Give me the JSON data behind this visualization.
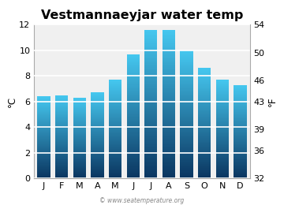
{
  "months": [
    "J",
    "F",
    "M",
    "A",
    "M",
    "J",
    "J",
    "A",
    "S",
    "O",
    "N",
    "D"
  ],
  "values_c": [
    6.4,
    6.5,
    6.3,
    6.7,
    7.7,
    9.7,
    11.6,
    11.6,
    10.0,
    8.6,
    7.7,
    7.3
  ],
  "title": "Vestmannaeyjar water temp",
  "ylabel_left": "°C",
  "ylabel_right": "°F",
  "ylim_c": [
    0,
    12
  ],
  "yticks_c": [
    0,
    2,
    4,
    6,
    8,
    10,
    12
  ],
  "yticks_f": [
    32,
    36,
    39,
    43,
    46,
    50,
    54
  ],
  "bar_color_top": "#45c8f0",
  "bar_color_bottom": "#0a3560",
  "plot_bg_color": "#f0f0f0",
  "fig_bg_color": "#ffffff",
  "watermark": "© www.seatemperature.org",
  "title_fontsize": 11.5,
  "axis_fontsize": 8.5,
  "tick_fontsize": 8,
  "bar_width": 0.72,
  "grid_color": "#ffffff",
  "grid_linewidth": 1.2
}
